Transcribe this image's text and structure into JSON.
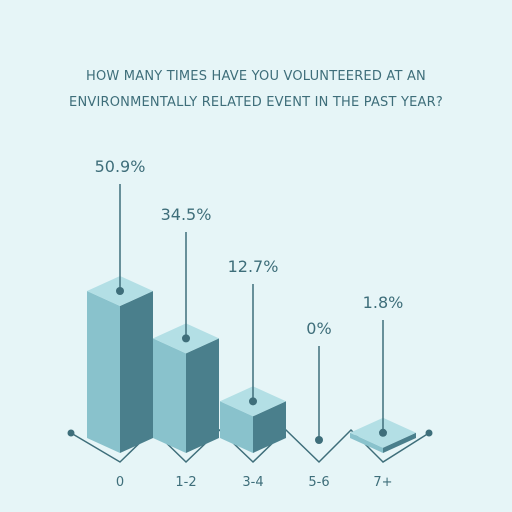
{
  "chart_data": {
    "type": "bar",
    "title_lines": [
      "HOW MANY TIMES HAVE YOU VOLUNTEERED AT AN",
      "ENVIRONMENTALLY RELATED EVENT IN THE PAST YEAR?"
    ],
    "categories": [
      "0",
      "1-2",
      "3-4",
      "5-6",
      "7+"
    ],
    "values": [
      50.9,
      34.5,
      12.7,
      0,
      1.8
    ],
    "value_labels": [
      "50.9%",
      "34.5%",
      "12.7%",
      "0%",
      "1.8%"
    ],
    "xlabel": "",
    "ylabel": "",
    "ylim": [
      0,
      55
    ],
    "grid": false,
    "legend": "none"
  },
  "colors": {
    "background": "#e6f5f7",
    "bar_top": "#b3dfe5",
    "bar_front": "#89c2cc",
    "bar_side": "#4a7f8c",
    "line": "#3e6e7a",
    "text": "#3e6e7a"
  }
}
